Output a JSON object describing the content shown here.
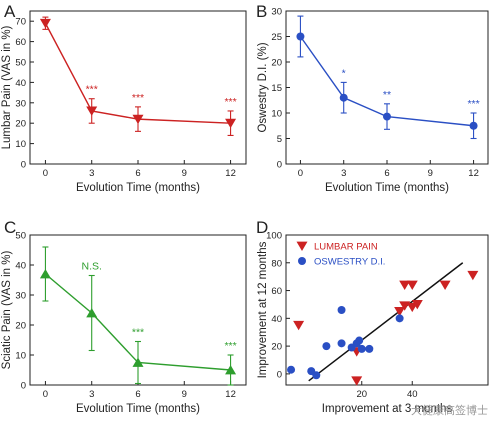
{
  "colors": {
    "red": "#cc2222",
    "blue": "#2a4fc4",
    "green": "#2e9e2e",
    "axis": "#222222",
    "fit": "#111111"
  },
  "watermark": "大健康高签博士",
  "chart_data": [
    {
      "panel": "A",
      "type": "line",
      "color_key": "red",
      "marker": "triangle-down",
      "xlabel": "Evolution Time (months)",
      "ylabel": "Lumbar Pain (VAS in %)",
      "xlim": [
        -1,
        13
      ],
      "ylim": [
        0,
        75
      ],
      "xticks": [
        0,
        3,
        6,
        9,
        12
      ],
      "yticks": [
        0,
        10,
        20,
        30,
        40,
        50,
        60,
        70
      ],
      "x": [
        0,
        3,
        6,
        12
      ],
      "y": [
        69,
        26,
        22,
        20
      ],
      "err": [
        3,
        6,
        6,
        6
      ],
      "annotations": [
        "",
        "***",
        "***",
        "***"
      ]
    },
    {
      "panel": "B",
      "type": "line",
      "color_key": "blue",
      "marker": "circle",
      "xlabel": "Evolution Time (months)",
      "ylabel": "Oswestry D.I. (%)",
      "xlim": [
        -1,
        13
      ],
      "ylim": [
        0,
        30
      ],
      "xticks": [
        0,
        3,
        6,
        9,
        12
      ],
      "yticks": [
        0,
        5,
        10,
        15,
        20,
        25,
        30
      ],
      "x": [
        0,
        3,
        6,
        12
      ],
      "y": [
        25,
        13,
        9.3,
        7.5
      ],
      "err": [
        4,
        3,
        2.5,
        2.5
      ],
      "annotations": [
        "",
        "*",
        "**",
        "***"
      ]
    },
    {
      "panel": "C",
      "type": "line",
      "color_key": "green",
      "marker": "triangle-up",
      "xlabel": "Evolution Time (months)",
      "ylabel": "Sciatic Pain (VAS in %)",
      "xlim": [
        -1,
        13
      ],
      "ylim": [
        0,
        50
      ],
      "xticks": [
        0,
        3,
        6,
        9,
        12
      ],
      "yticks": [
        0,
        10,
        20,
        30,
        40,
        50
      ],
      "x": [
        0,
        3,
        6,
        12
      ],
      "y": [
        37,
        24,
        7.5,
        5
      ],
      "err": [
        9,
        12.5,
        7,
        5
      ],
      "annotations": [
        "",
        "N.S.",
        "***",
        "***"
      ]
    },
    {
      "panel": "D",
      "type": "scatter",
      "xlabel": "Improvement at 3 months",
      "ylabel": "Improvement at 12 months",
      "xlim": [
        -10,
        70
      ],
      "ylim": [
        -8,
        100
      ],
      "xticks": [
        20,
        40
      ],
      "yticks": [
        0,
        20,
        40,
        60,
        80,
        100
      ],
      "series": [
        {
          "name": "LUMBAR PAIN",
          "color_key": "red",
          "marker": "triangle-down",
          "points": [
            [
              -5,
              35
            ],
            [
              18,
              -5
            ],
            [
              35,
              45
            ],
            [
              37,
              49
            ],
            [
              40,
              48
            ],
            [
              42,
              50
            ],
            [
              37,
              64
            ],
            [
              40,
              64
            ],
            [
              53,
              64
            ],
            [
              64,
              71
            ],
            [
              18,
              16
            ]
          ]
        },
        {
          "name": "OSWESTRY D.I.",
          "color_key": "blue",
          "marker": "circle",
          "points": [
            [
              -8,
              3
            ],
            [
              0,
              2
            ],
            [
              2,
              -1
            ],
            [
              6,
              20
            ],
            [
              12,
              46
            ],
            [
              12,
              22
            ],
            [
              16,
              19
            ],
            [
              18,
              22
            ],
            [
              19,
              24
            ],
            [
              20,
              18
            ],
            [
              23,
              18
            ],
            [
              35,
              40
            ]
          ]
        }
      ],
      "fit_line": [
        [
          -1,
          -5
        ],
        [
          60,
          80
        ]
      ]
    }
  ]
}
